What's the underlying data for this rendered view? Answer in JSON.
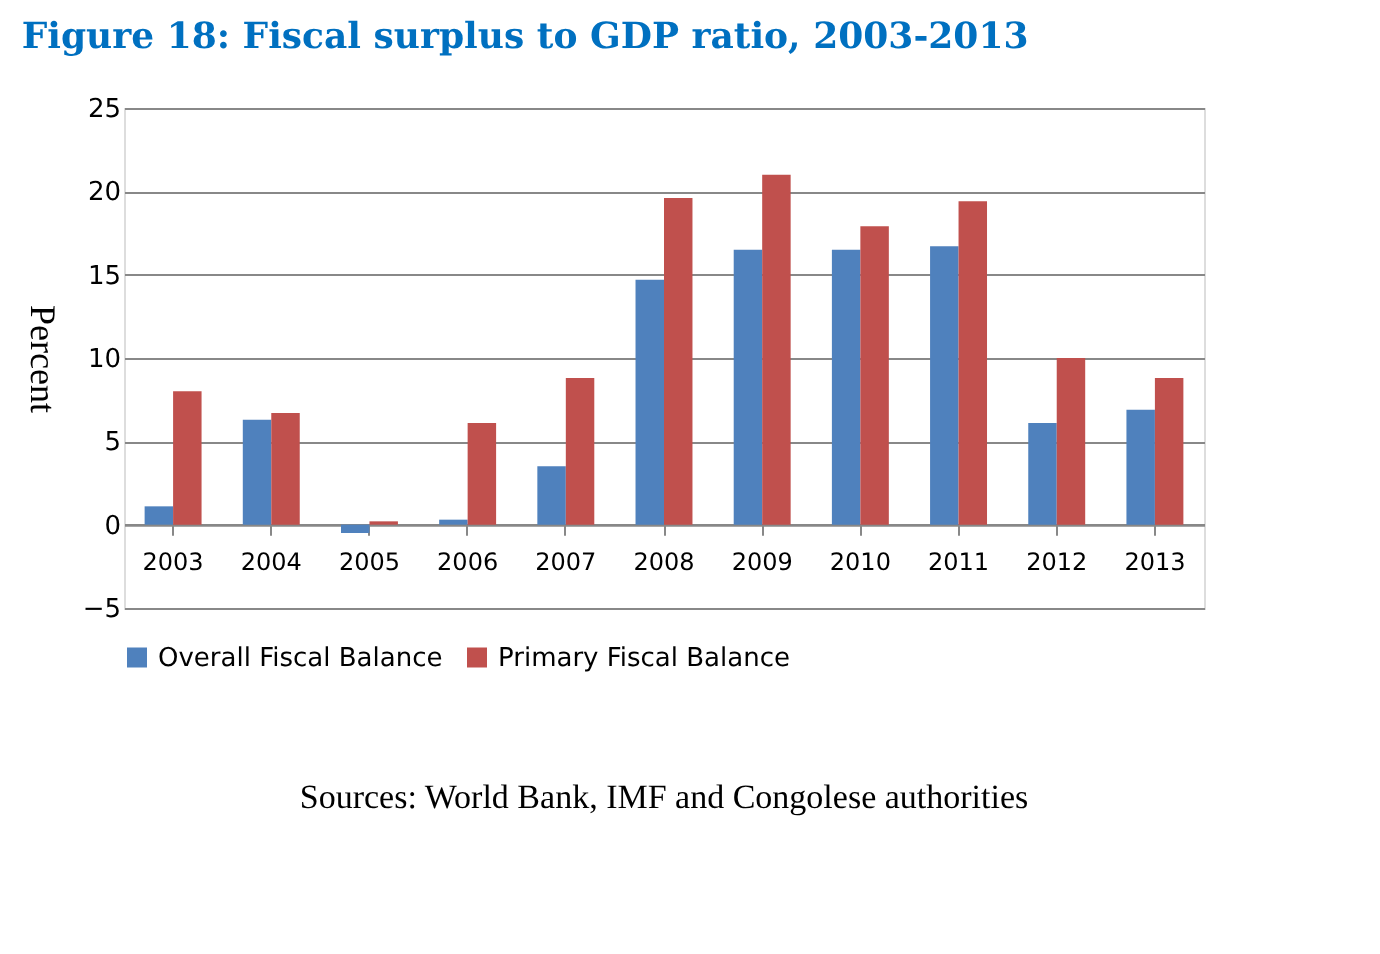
{
  "chart_data": {
    "type": "bar",
    "title": "Figure 18: Fiscal surplus to GDP ratio, 2003-2013",
    "ylabel": "Percent",
    "categories": [
      "2003",
      "2004",
      "2005",
      "2006",
      "2007",
      "2008",
      "2009",
      "2010",
      "2011",
      "2012",
      "2013"
    ],
    "series": [
      {
        "name": "Overall Fiscal Balance",
        "color": "#4f81bd",
        "values": [
          1.1,
          6.3,
          -0.5,
          0.3,
          3.5,
          14.7,
          16.5,
          16.5,
          16.7,
          6.1,
          6.9
        ]
      },
      {
        "name": "Primary Fiscal Balance",
        "color": "#c0504d",
        "values": [
          8.0,
          6.7,
          0.2,
          6.1,
          8.8,
          19.6,
          21.0,
          17.9,
          19.4,
          10.0,
          8.8
        ]
      }
    ],
    "ylim": [
      -5,
      25
    ],
    "yticks": [
      -5,
      0,
      5,
      10,
      15,
      20,
      25
    ],
    "grid": "y",
    "legend": "bottom",
    "annotations": [
      "Sources: World Bank, IMF and  Congolese authorities"
    ]
  }
}
